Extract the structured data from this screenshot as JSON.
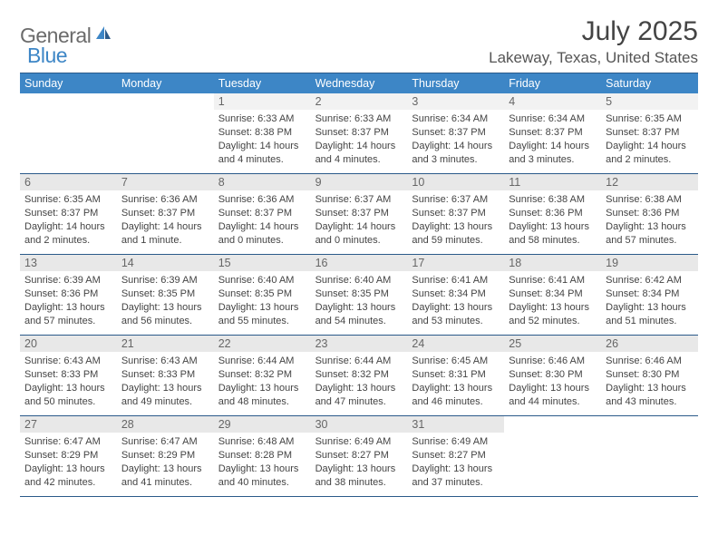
{
  "logo": {
    "general": "General",
    "blue": "Blue"
  },
  "title": "July 2025",
  "location": "Lakeway, Texas, United States",
  "colors": {
    "header_bg": "#3d86c6",
    "header_text": "#ffffff",
    "border": "#2b5a8a",
    "daynum_bg": "#e8e8e8",
    "text": "#444444"
  },
  "weekdays": [
    "Sunday",
    "Monday",
    "Tuesday",
    "Wednesday",
    "Thursday",
    "Friday",
    "Saturday"
  ],
  "weeks": [
    [
      null,
      null,
      {
        "n": "1",
        "sr": "Sunrise: 6:33 AM",
        "ss": "Sunset: 8:38 PM",
        "d1": "Daylight: 14 hours",
        "d2": "and 4 minutes."
      },
      {
        "n": "2",
        "sr": "Sunrise: 6:33 AM",
        "ss": "Sunset: 8:37 PM",
        "d1": "Daylight: 14 hours",
        "d2": "and 4 minutes."
      },
      {
        "n": "3",
        "sr": "Sunrise: 6:34 AM",
        "ss": "Sunset: 8:37 PM",
        "d1": "Daylight: 14 hours",
        "d2": "and 3 minutes."
      },
      {
        "n": "4",
        "sr": "Sunrise: 6:34 AM",
        "ss": "Sunset: 8:37 PM",
        "d1": "Daylight: 14 hours",
        "d2": "and 3 minutes."
      },
      {
        "n": "5",
        "sr": "Sunrise: 6:35 AM",
        "ss": "Sunset: 8:37 PM",
        "d1": "Daylight: 14 hours",
        "d2": "and 2 minutes."
      }
    ],
    [
      {
        "n": "6",
        "sr": "Sunrise: 6:35 AM",
        "ss": "Sunset: 8:37 PM",
        "d1": "Daylight: 14 hours",
        "d2": "and 2 minutes."
      },
      {
        "n": "7",
        "sr": "Sunrise: 6:36 AM",
        "ss": "Sunset: 8:37 PM",
        "d1": "Daylight: 14 hours",
        "d2": "and 1 minute."
      },
      {
        "n": "8",
        "sr": "Sunrise: 6:36 AM",
        "ss": "Sunset: 8:37 PM",
        "d1": "Daylight: 14 hours",
        "d2": "and 0 minutes."
      },
      {
        "n": "9",
        "sr": "Sunrise: 6:37 AM",
        "ss": "Sunset: 8:37 PM",
        "d1": "Daylight: 14 hours",
        "d2": "and 0 minutes."
      },
      {
        "n": "10",
        "sr": "Sunrise: 6:37 AM",
        "ss": "Sunset: 8:37 PM",
        "d1": "Daylight: 13 hours",
        "d2": "and 59 minutes."
      },
      {
        "n": "11",
        "sr": "Sunrise: 6:38 AM",
        "ss": "Sunset: 8:36 PM",
        "d1": "Daylight: 13 hours",
        "d2": "and 58 minutes."
      },
      {
        "n": "12",
        "sr": "Sunrise: 6:38 AM",
        "ss": "Sunset: 8:36 PM",
        "d1": "Daylight: 13 hours",
        "d2": "and 57 minutes."
      }
    ],
    [
      {
        "n": "13",
        "sr": "Sunrise: 6:39 AM",
        "ss": "Sunset: 8:36 PM",
        "d1": "Daylight: 13 hours",
        "d2": "and 57 minutes."
      },
      {
        "n": "14",
        "sr": "Sunrise: 6:39 AM",
        "ss": "Sunset: 8:35 PM",
        "d1": "Daylight: 13 hours",
        "d2": "and 56 minutes."
      },
      {
        "n": "15",
        "sr": "Sunrise: 6:40 AM",
        "ss": "Sunset: 8:35 PM",
        "d1": "Daylight: 13 hours",
        "d2": "and 55 minutes."
      },
      {
        "n": "16",
        "sr": "Sunrise: 6:40 AM",
        "ss": "Sunset: 8:35 PM",
        "d1": "Daylight: 13 hours",
        "d2": "and 54 minutes."
      },
      {
        "n": "17",
        "sr": "Sunrise: 6:41 AM",
        "ss": "Sunset: 8:34 PM",
        "d1": "Daylight: 13 hours",
        "d2": "and 53 minutes."
      },
      {
        "n": "18",
        "sr": "Sunrise: 6:41 AM",
        "ss": "Sunset: 8:34 PM",
        "d1": "Daylight: 13 hours",
        "d2": "and 52 minutes."
      },
      {
        "n": "19",
        "sr": "Sunrise: 6:42 AM",
        "ss": "Sunset: 8:34 PM",
        "d1": "Daylight: 13 hours",
        "d2": "and 51 minutes."
      }
    ],
    [
      {
        "n": "20",
        "sr": "Sunrise: 6:43 AM",
        "ss": "Sunset: 8:33 PM",
        "d1": "Daylight: 13 hours",
        "d2": "and 50 minutes."
      },
      {
        "n": "21",
        "sr": "Sunrise: 6:43 AM",
        "ss": "Sunset: 8:33 PM",
        "d1": "Daylight: 13 hours",
        "d2": "and 49 minutes."
      },
      {
        "n": "22",
        "sr": "Sunrise: 6:44 AM",
        "ss": "Sunset: 8:32 PM",
        "d1": "Daylight: 13 hours",
        "d2": "and 48 minutes."
      },
      {
        "n": "23",
        "sr": "Sunrise: 6:44 AM",
        "ss": "Sunset: 8:32 PM",
        "d1": "Daylight: 13 hours",
        "d2": "and 47 minutes."
      },
      {
        "n": "24",
        "sr": "Sunrise: 6:45 AM",
        "ss": "Sunset: 8:31 PM",
        "d1": "Daylight: 13 hours",
        "d2": "and 46 minutes."
      },
      {
        "n": "25",
        "sr": "Sunrise: 6:46 AM",
        "ss": "Sunset: 8:30 PM",
        "d1": "Daylight: 13 hours",
        "d2": "and 44 minutes."
      },
      {
        "n": "26",
        "sr": "Sunrise: 6:46 AM",
        "ss": "Sunset: 8:30 PM",
        "d1": "Daylight: 13 hours",
        "d2": "and 43 minutes."
      }
    ],
    [
      {
        "n": "27",
        "sr": "Sunrise: 6:47 AM",
        "ss": "Sunset: 8:29 PM",
        "d1": "Daylight: 13 hours",
        "d2": "and 42 minutes."
      },
      {
        "n": "28",
        "sr": "Sunrise: 6:47 AM",
        "ss": "Sunset: 8:29 PM",
        "d1": "Daylight: 13 hours",
        "d2": "and 41 minutes."
      },
      {
        "n": "29",
        "sr": "Sunrise: 6:48 AM",
        "ss": "Sunset: 8:28 PM",
        "d1": "Daylight: 13 hours",
        "d2": "and 40 minutes."
      },
      {
        "n": "30",
        "sr": "Sunrise: 6:49 AM",
        "ss": "Sunset: 8:27 PM",
        "d1": "Daylight: 13 hours",
        "d2": "and 38 minutes."
      },
      {
        "n": "31",
        "sr": "Sunrise: 6:49 AM",
        "ss": "Sunset: 8:27 PM",
        "d1": "Daylight: 13 hours",
        "d2": "and 37 minutes."
      },
      null,
      null
    ]
  ]
}
